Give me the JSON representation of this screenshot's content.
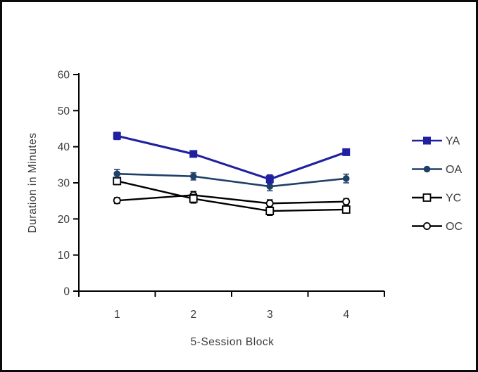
{
  "chart_data": {
    "type": "line",
    "title": "",
    "xlabel": "5-Session Block",
    "ylabel": "Duration in Minutes",
    "categories": [
      "1",
      "2",
      "3",
      "4"
    ],
    "ylim": [
      0,
      60
    ],
    "yticks": [
      0,
      10,
      20,
      30,
      40,
      50,
      60
    ],
    "grid": false,
    "legend_position": "right",
    "axis_color": "#000000",
    "text_color": "#3b3b3b",
    "series": [
      {
        "name": "YA",
        "marker": "square-filled",
        "color": "#2020A0",
        "values": [
          43,
          38,
          31,
          38.5
        ],
        "errors": [
          1,
          0.8,
          1.2,
          0.8
        ]
      },
      {
        "name": "OA",
        "marker": "circle-filled",
        "color": "#1F4068",
        "values": [
          32.5,
          31.8,
          29,
          31.2
        ],
        "errors": [
          1.2,
          1,
          1.2,
          1.2
        ]
      },
      {
        "name": "YC",
        "marker": "square-open",
        "color": "#000000",
        "values": [
          30.5,
          25.6,
          22.2,
          22.6
        ],
        "errors": [
          1,
          1.2,
          1.2,
          1
        ]
      },
      {
        "name": "OC",
        "marker": "circle-open",
        "color": "#000000",
        "values": [
          25.1,
          26.6,
          24.3,
          24.8
        ],
        "errors": [
          0.8,
          1,
          1,
          0.8
        ]
      }
    ]
  }
}
